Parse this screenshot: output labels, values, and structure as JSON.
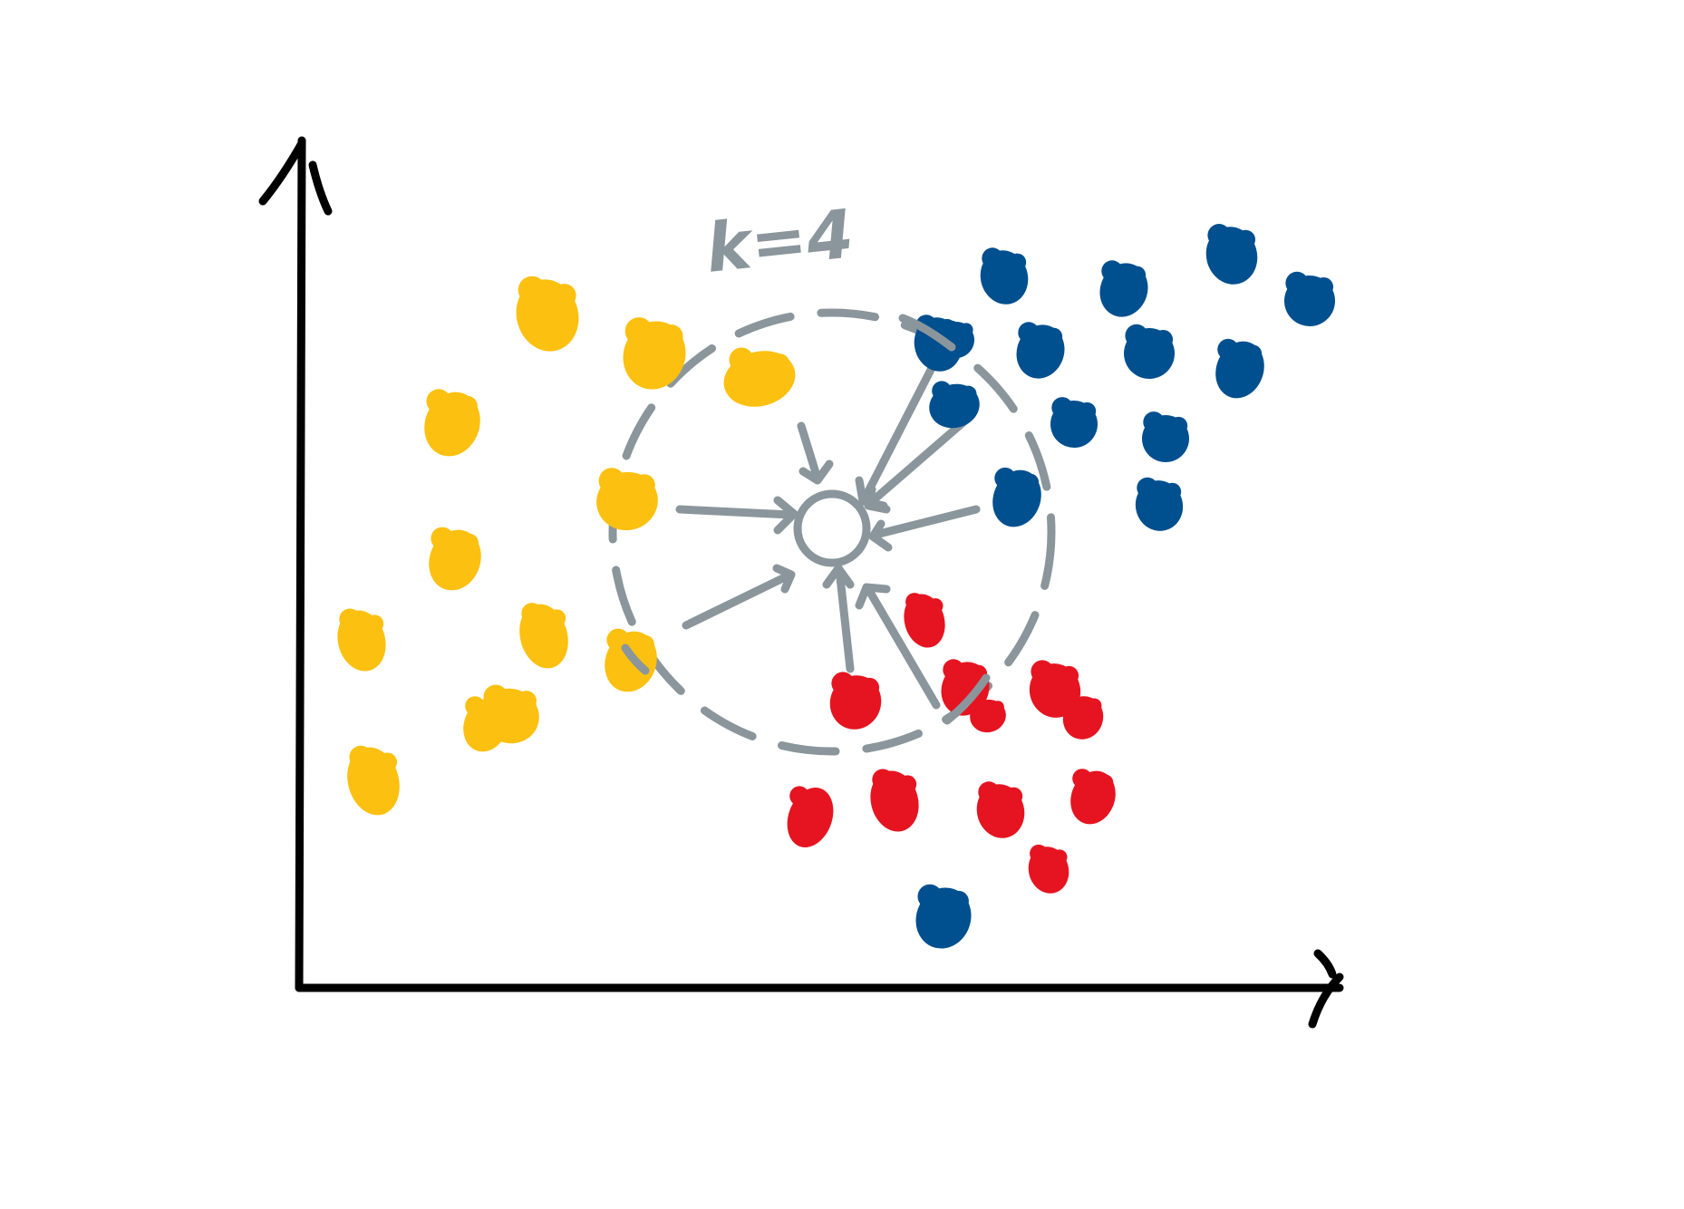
{
  "diagram": {
    "neighbor_count_label": "k=4",
    "colors": {
      "axis": "#000000",
      "sketch": "#8a969b",
      "class_yellow": "#fcc010",
      "class_blue": "#004f8f",
      "class_red": "#e51420"
    },
    "class_counts": {
      "yellow": 12,
      "blue": 15,
      "red": 11
    }
  }
}
